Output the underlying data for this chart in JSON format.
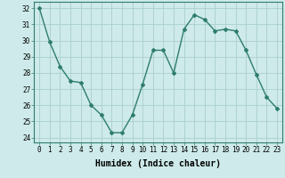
{
  "x": [
    0,
    1,
    2,
    3,
    4,
    5,
    6,
    7,
    8,
    9,
    10,
    11,
    12,
    13,
    14,
    15,
    16,
    17,
    18,
    19,
    20,
    21,
    22,
    23
  ],
  "y": [
    32,
    29.9,
    28.4,
    27.5,
    27.4,
    26.0,
    25.4,
    24.3,
    24.3,
    25.4,
    27.3,
    29.4,
    29.4,
    28.0,
    30.7,
    31.6,
    31.3,
    30.6,
    30.7,
    30.6,
    29.4,
    27.9,
    26.5,
    25.8
  ],
  "line_color": "#2e7d6e",
  "marker": "D",
  "markersize": 2.0,
  "linewidth": 1.0,
  "xlabel": "Humidex (Indice chaleur)",
  "xlim": [
    -0.5,
    23.5
  ],
  "ylim": [
    23.7,
    32.4
  ],
  "yticks": [
    24,
    25,
    26,
    27,
    28,
    29,
    30,
    31,
    32
  ],
  "xticks": [
    0,
    1,
    2,
    3,
    4,
    5,
    6,
    7,
    8,
    9,
    10,
    11,
    12,
    13,
    14,
    15,
    16,
    17,
    18,
    19,
    20,
    21,
    22,
    23
  ],
  "background_color": "#ceeaea",
  "grid_color": "#aacece",
  "tick_fontsize": 5.5,
  "label_fontsize": 7.0
}
